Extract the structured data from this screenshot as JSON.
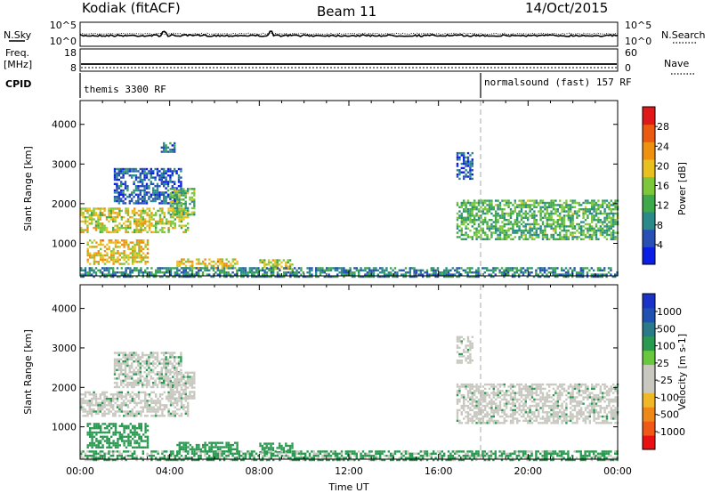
{
  "header": {
    "station": "Kodiak (fitACF)",
    "beam": "Beam 11",
    "date": "14/Oct/2015"
  },
  "top_panels": {
    "nsky_label": "N.Sky",
    "nsky_ticks": [
      "10^5",
      "10^0"
    ],
    "nsearch_label": "N.Search",
    "nsearch_ticks": [
      "10^5",
      "10^0"
    ],
    "freq_label_1": "Freq.",
    "freq_label_2": "[MHz]",
    "freq_ticks": [
      "18",
      "8"
    ],
    "nave_label": "Nave",
    "nave_ticks": [
      "60",
      "0"
    ],
    "cpid_label": "CPID",
    "cpid_segments": [
      {
        "label": "themis 3300 RF",
        "start_hour": 0
      },
      {
        "label": "normalsound (fast) 157 RF",
        "start_hour": 17.9
      }
    ]
  },
  "colors": {
    "power": [
      "#0a1ee6",
      "#2850b4",
      "#2a8a8a",
      "#3fa84a",
      "#7dc83a",
      "#e8c020",
      "#ee9010",
      "#ea5a10",
      "#e01818"
    ],
    "velocity": [
      "#e81010",
      "#f05818",
      "#f08818",
      "#f0b828",
      "#c8c8c0",
      "#c8c8c0",
      "#6ac840",
      "#2a9a50",
      "#2a7a8a",
      "#2050b0",
      "#1a32c8"
    ]
  },
  "chart_data": [
    {
      "type": "heatmap",
      "name": "power",
      "title": "",
      "ylabel": "Slant Range [km]",
      "xlabel": "",
      "x_ticks": [
        "00:00",
        "04:00",
        "08:00",
        "12:00",
        "16:00",
        "20:00",
        "00:00"
      ],
      "x_range_hours": [
        0,
        24
      ],
      "ylim": [
        180,
        4600
      ],
      "y_ticks": [
        1000,
        2000,
        3000,
        4000
      ],
      "colorbar": {
        "label": "Power [dB]",
        "range": [
          0,
          32
        ],
        "ticks": [
          4,
          8,
          12,
          16,
          20,
          24,
          28
        ]
      },
      "regions": [
        {
          "t0": 0.0,
          "t1": 4.8,
          "r0": 1300,
          "r1": 1900,
          "level": 18
        },
        {
          "t0": 0.3,
          "t1": 3.0,
          "r0": 500,
          "r1": 1100,
          "level": 20
        },
        {
          "t0": 1.5,
          "t1": 4.5,
          "r0": 2000,
          "r1": 2900,
          "level": 6
        },
        {
          "t0": 3.6,
          "t1": 4.2,
          "r0": 3300,
          "r1": 3550,
          "level": 8
        },
        {
          "t0": 4.0,
          "t1": 5.1,
          "r0": 1700,
          "r1": 2400,
          "level": 14
        },
        {
          "t0": 4.3,
          "t1": 7.0,
          "r0": 380,
          "r1": 620,
          "level": 20
        },
        {
          "t0": 8.0,
          "t1": 9.5,
          "r0": 350,
          "r1": 600,
          "level": 17
        },
        {
          "t0": 0.0,
          "t1": 24.0,
          "r0": 180,
          "r1": 400,
          "level": 9
        },
        {
          "t0": 16.8,
          "t1": 24.0,
          "r0": 1100,
          "r1": 2100,
          "level": 13
        },
        {
          "t0": 16.8,
          "t1": 17.5,
          "r0": 2600,
          "r1": 3300,
          "level": 6
        }
      ]
    },
    {
      "type": "heatmap",
      "name": "velocity",
      "title": "",
      "ylabel": "Slant Range [km]",
      "xlabel": "Time UT",
      "x_ticks": [
        "00:00",
        "04:00",
        "08:00",
        "12:00",
        "16:00",
        "20:00",
        "00:00"
      ],
      "x_range_hours": [
        0,
        24
      ],
      "ylim": [
        180,
        4600
      ],
      "y_ticks": [
        1000,
        2000,
        3000,
        4000
      ],
      "colorbar": {
        "label": "Velocity [m s-1]",
        "ticks": [
          "1000",
          "500",
          "100",
          "25",
          "-25",
          "-100",
          "-500",
          "-1000"
        ]
      },
      "regions": [
        {
          "t0": 0.0,
          "t1": 4.8,
          "r0": 1300,
          "r1": 1900,
          "level": 0
        },
        {
          "t0": 0.3,
          "t1": 3.0,
          "r0": 500,
          "r1": 1100,
          "level": 60
        },
        {
          "t0": 1.5,
          "t1": 4.5,
          "r0": 2000,
          "r1": 2900,
          "level": 5
        },
        {
          "t0": 4.0,
          "t1": 5.1,
          "r0": 1700,
          "r1": 2400,
          "level": 0
        },
        {
          "t0": 4.3,
          "t1": 7.0,
          "r0": 380,
          "r1": 620,
          "level": 60
        },
        {
          "t0": 8.0,
          "t1": 9.5,
          "r0": 350,
          "r1": 600,
          "level": 60
        },
        {
          "t0": 0.0,
          "t1": 24.0,
          "r0": 180,
          "r1": 400,
          "level": 40
        },
        {
          "t0": 16.8,
          "t1": 24.0,
          "r0": 1100,
          "r1": 2100,
          "level": 0
        },
        {
          "t0": 16.8,
          "t1": 17.5,
          "r0": 2600,
          "r1": 3300,
          "level": 0
        }
      ]
    }
  ]
}
